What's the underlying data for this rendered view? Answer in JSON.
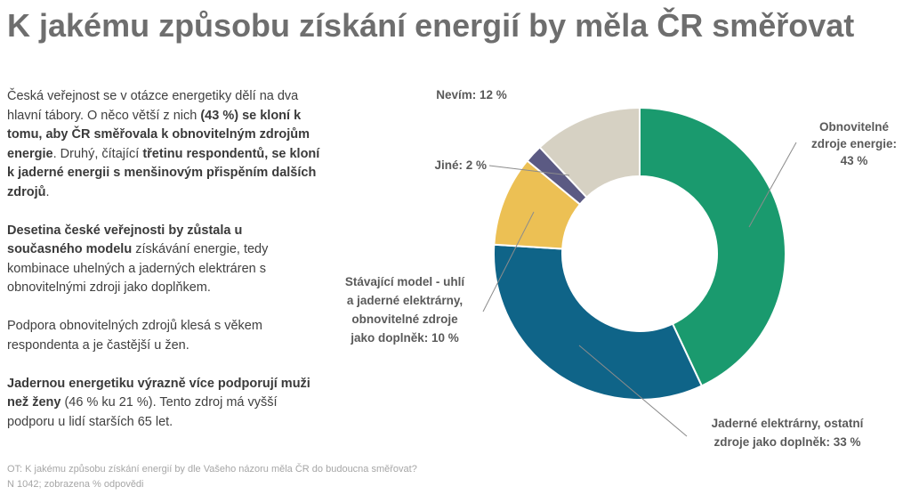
{
  "title": "K jakému způsobu získání energií by měla ČR směřovat",
  "paragraphs": [
    [
      {
        "t": "Česká veřejnost se v otázce energetiky dělí na dva hlavní tábory. O něco větší z nich ",
        "b": false
      },
      {
        "t": "(43 %) se kloní k tomu, aby ČR směřovala k obnovitelným zdrojům energie",
        "b": true
      },
      {
        "t": ". Druhý, čítající ",
        "b": false
      },
      {
        "t": "třetinu respondentů, se kloní k jaderné energii s menšinovým přispěním dalších zdrojů",
        "b": true
      },
      {
        "t": ".",
        "b": false
      }
    ],
    [
      {
        "t": "Desetina české veřejnosti by zůstala u současného modelu",
        "b": true
      },
      {
        "t": " získávání energie, tedy kombinace uhelných a jaderných elektráren s obnovitelnými zdroji jako doplňkem.",
        "b": false
      }
    ],
    [
      {
        "t": "Podpora obnovitelných zdrojů klesá s věkem respondenta a je častější u žen.",
        "b": false
      }
    ],
    [
      {
        "t": "Jadernou energetiku výrazně více podporují muži než ženy",
        "b": true
      },
      {
        "t": " (46 % ku 21 %). Tento zdroj má vyšší podporu u lidí starších 65 let.",
        "b": false
      }
    ]
  ],
  "footnote": {
    "line1": "OT: K jakému způsobu získání energií by dle Vašeho názoru měla ČR do budoucna směřovat?",
    "line2": "N 1042; zobrazena % odpovědi"
  },
  "chart_data": {
    "type": "pie",
    "style": "donut",
    "unit": "%",
    "slices": [
      {
        "label_lines": [
          "Obnovitelné",
          "zdroje energie:",
          "43 %"
        ],
        "value": 43,
        "color": "#1a9a6e"
      },
      {
        "label_lines": [
          "Jaderné elektrárny, ostatní",
          "zdroje jako doplněk: 33 %"
        ],
        "value": 33,
        "color": "#0f6488"
      },
      {
        "label_lines": [
          "Stávající model - uhlí",
          "a jaderné elektrárny,",
          "obnovitelné zdroje",
          "jako doplněk: 10 %"
        ],
        "value": 10,
        "color": "#ecc054"
      },
      {
        "label_lines": [
          "Jiné: 2 %"
        ],
        "value": 2,
        "color": "#5b5a83"
      },
      {
        "label_lines": [
          "Nevím: 12 %"
        ],
        "value": 12,
        "color": "#d6d1c3"
      }
    ]
  }
}
